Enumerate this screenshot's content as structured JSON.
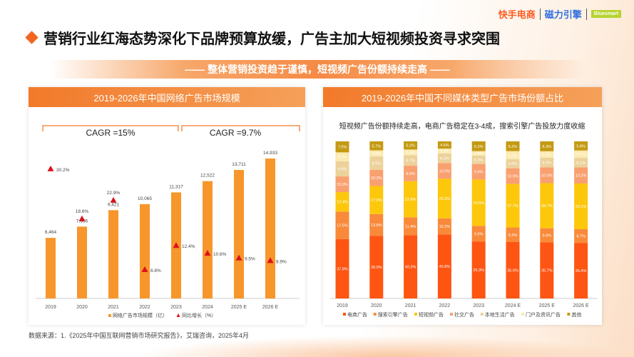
{
  "header": {
    "logos": [
      "快手电商",
      "磁力引擎",
      "Bluesmart"
    ],
    "title": "营销行业红海态势深化下品牌预算放缓，广告主加大短视频投资寻求突围",
    "banner": "—— 整体营销投资趋于谨慎，短视频广告份额持续走高 ——"
  },
  "colors": {
    "accent": "#f26522",
    "bar": "#f7962b",
    "triangle": "#d9121b"
  },
  "chart_data": [
    {
      "type": "bar",
      "title": "2019-2026年中国网络广告市场规模",
      "categories": [
        "2019",
        "2020",
        "2021",
        "2022",
        "2023",
        "2024",
        "2025 E",
        "2026 E"
      ],
      "series": [
        {
          "name": "网络广告市场规模（亿）",
          "values": [
            6464,
            7666,
            9421,
            10065,
            11317,
            12522,
            13711,
            14933
          ],
          "labels": [
            "6,464",
            "7,666",
            "9,421",
            "10,065",
            "11,317",
            "12,522",
            "13,711",
            "14,933"
          ]
        },
        {
          "name": "同比增长（%）",
          "values": [
            30.2,
            18.6,
            22.9,
            6.8,
            12.4,
            10.6,
            9.5,
            8.9
          ],
          "labels": [
            "30.2%",
            "18.6%",
            "22.9%",
            "6.8%",
            "12.4%",
            "10.6%",
            "9.5%",
            "8.9%"
          ]
        }
      ],
      "annotations": [
        "CAGR =15%",
        "CAGR =9.7%"
      ],
      "legend": "bottom"
    },
    {
      "type": "bar",
      "stacked": true,
      "title": "2019-2026年中国不同媒体类型广告市场份额占比",
      "subtitle": "短视频广告份额持续走高，电商广告稳定在3-4成，搜索引擎广告投放力度收缩",
      "categories": [
        "2019",
        "2020",
        "2021",
        "2022",
        "2023",
        "2024 E",
        "2025 E",
        "2026 E"
      ],
      "series": [
        {
          "name": "电商广告",
          "color": "#fe5512",
          "values": [
            37.8,
            39.9,
            40.3,
            40.8,
            36.3,
            35.9,
            35.7,
            35.4
          ]
        },
        {
          "name": "搜索引擎广告",
          "color": "#f98a3a",
          "values": [
            17.5,
            13.8,
            11.4,
            10.2,
            9.9,
            9.3,
            9.0,
            8.7
          ]
        },
        {
          "name": "短视频广告",
          "color": "#fdc70c",
          "values": [
            12.4,
            17.9,
            22.9,
            25.2,
            29.5,
            27.7,
            28.7,
            29.1
          ]
        },
        {
          "name": "社交广告",
          "color": "#f9a070",
          "values": [
            10.0,
            10.3,
            9.9,
            10.0,
            9.9,
            10.0,
            10.0,
            10.2
          ]
        },
        {
          "name": "本地生活广告",
          "color": "#ecd29a",
          "values": [
            9.6,
            8.5,
            6.7,
            6.1,
            5.3,
            5.8,
            6.2,
            6.1
          ]
        },
        {
          "name": "门户及资讯广告",
          "color": "#fbeab0",
          "values": [
            5.7,
            3.9,
            3.6,
            3.1,
            2.9,
            5.1,
            4.1,
            4.7
          ]
        },
        {
          "name": "其他",
          "color": "#c49a12",
          "values": [
            7.0,
            5.7,
            5.2,
            4.6,
            6.2,
            6.2,
            6.3,
            5.8
          ]
        }
      ],
      "legend": "bottom"
    }
  ],
  "source": "数据来源：1.《2025年中国互联网营销市场研究报告》，艾瑞咨询，2025年4月"
}
